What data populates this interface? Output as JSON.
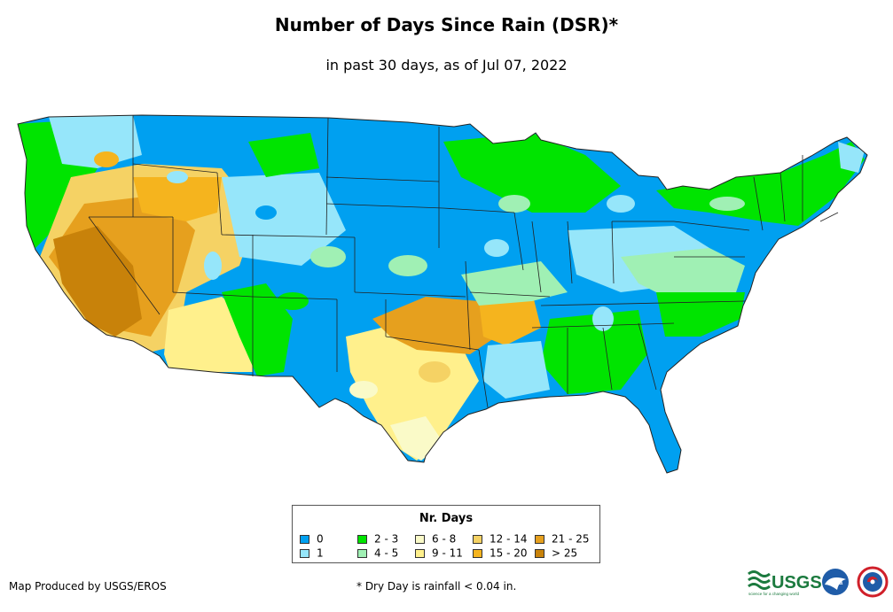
{
  "title": "Number of Days Since Rain (DSR)*",
  "subtitle": "in past 30 days, as of Jul 07, 2022",
  "legend": {
    "title": "Nr. Days",
    "items": [
      {
        "label": "0",
        "color": "#00a0f0"
      },
      {
        "label": "1",
        "color": "#96e6fa"
      },
      {
        "label": "2 - 3",
        "color": "#00e400"
      },
      {
        "label": "4 - 5",
        "color": "#a0f0b4"
      },
      {
        "label": "6 - 8",
        "color": "#fafac8"
      },
      {
        "label": "9 - 11",
        "color": "#fff08c"
      },
      {
        "label": "12 - 14",
        "color": "#f5d264"
      },
      {
        "label": "15 - 20",
        "color": "#f5b41e"
      },
      {
        "label": "21 - 25",
        "color": "#e6a01e"
      },
      {
        "label": "> 25",
        "color": "#c8820a"
      }
    ]
  },
  "credit": "Map Produced by USGS/EROS",
  "footnote": "* Dry Day is rainfall < 0.04 in.",
  "logos": {
    "usgs_text": "USGS",
    "usgs_tagline": "science for a changing world",
    "noaa_text": "noaa"
  }
}
